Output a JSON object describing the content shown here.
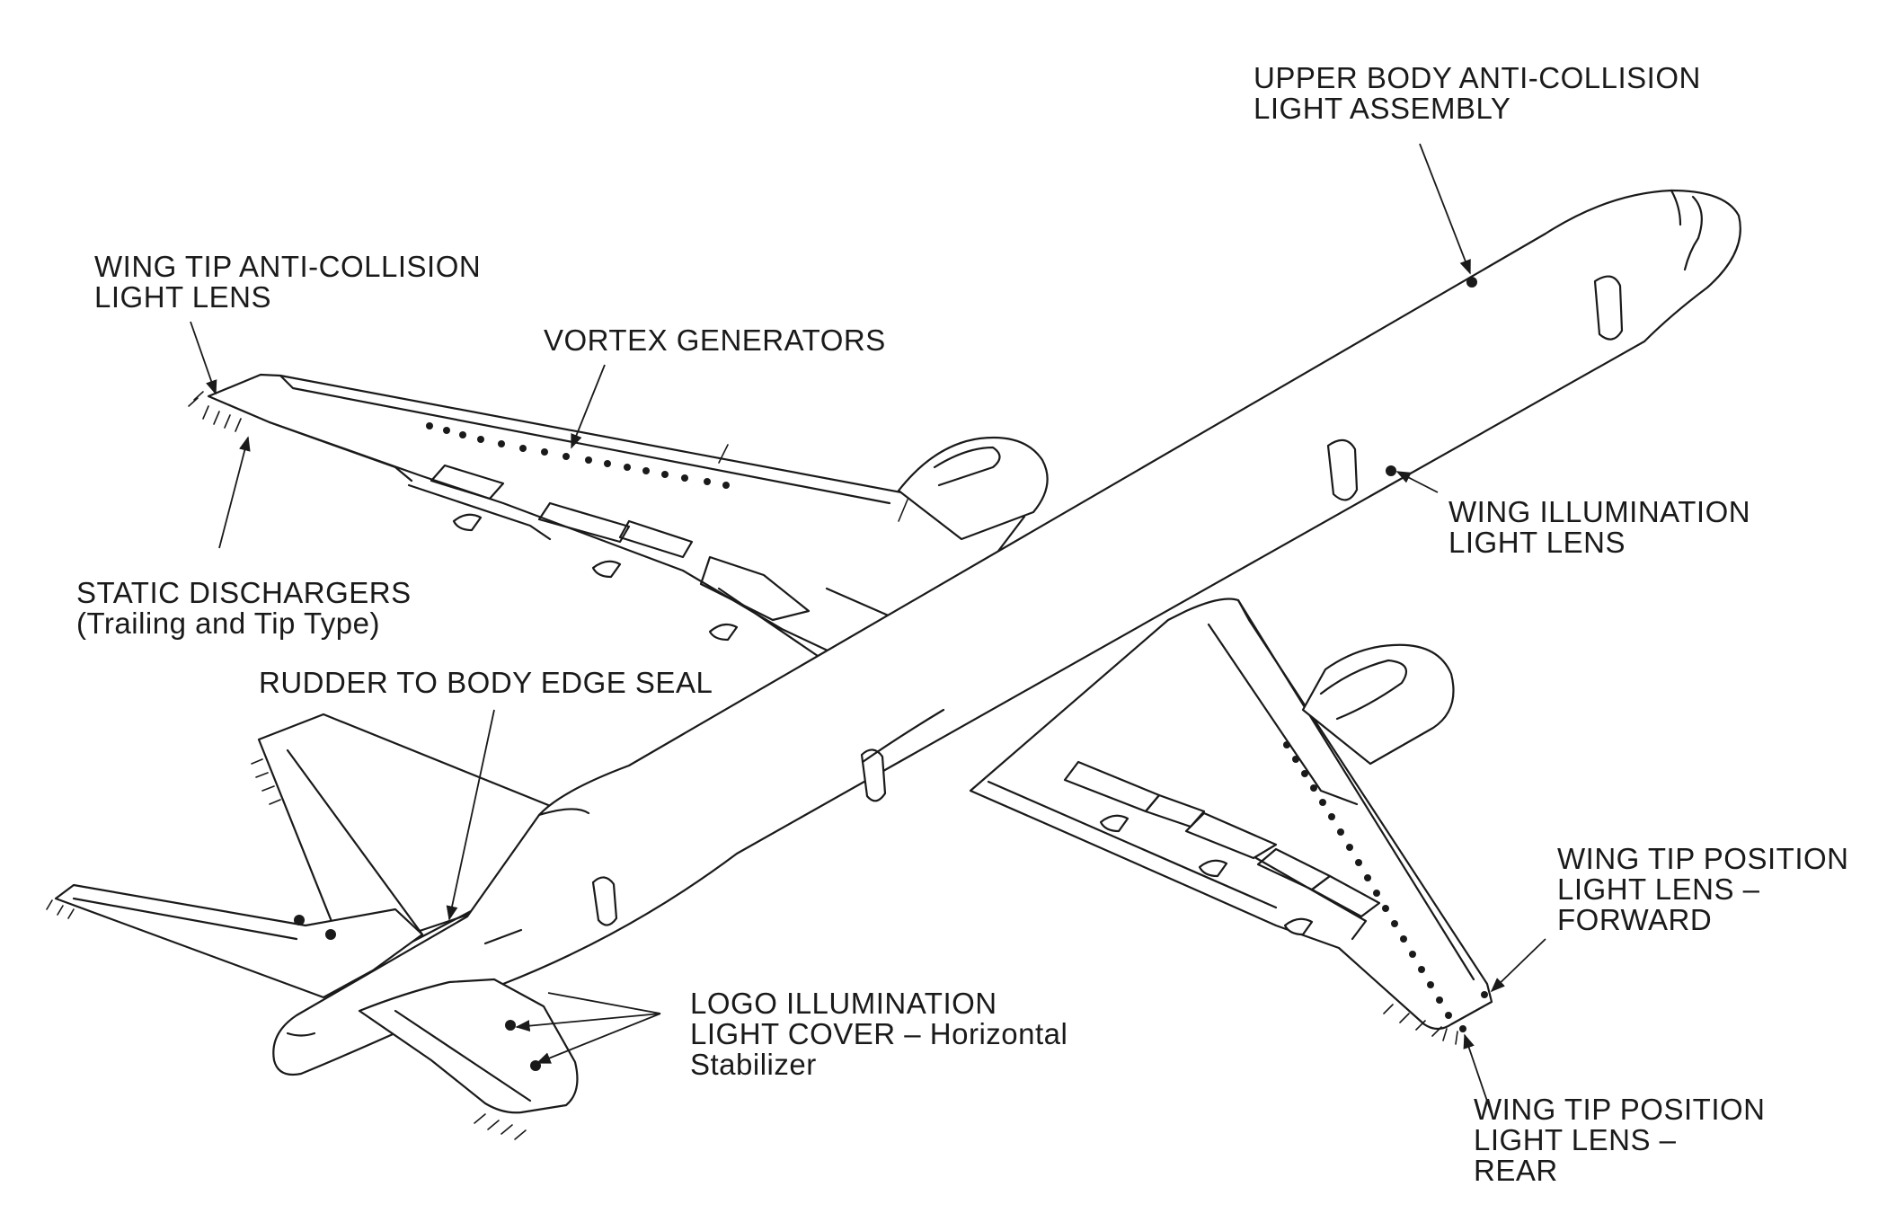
{
  "labels": {
    "upper_body_anti_collision": [
      "UPPER BODY ANTI-COLLISION",
      "LIGHT ASSEMBLY"
    ],
    "wing_tip_anti_collision": [
      "WING TIP ANTI-COLLISION",
      "LIGHT LENS"
    ],
    "vortex_generators": [
      "VORTEX GENERATORS"
    ],
    "wing_illumination": [
      "WING ILLUMINATION",
      "LIGHT LENS"
    ],
    "static_dischargers": [
      "STATIC DISCHARGERS",
      "(Trailing and Tip Type)"
    ],
    "rudder_seal": [
      "RUDDER TO BODY EDGE SEAL"
    ],
    "wing_tip_position_forward": [
      "WING TIP POSITION",
      "LIGHT LENS –",
      "FORWARD"
    ],
    "logo_illumination": [
      "LOGO ILLUMINATION",
      "LIGHT COVER – Horizontal",
      "Stabilizer"
    ],
    "wing_tip_position_rear": [
      "WING TIP POSITION",
      "LIGHT LENS –",
      "REAR"
    ]
  }
}
